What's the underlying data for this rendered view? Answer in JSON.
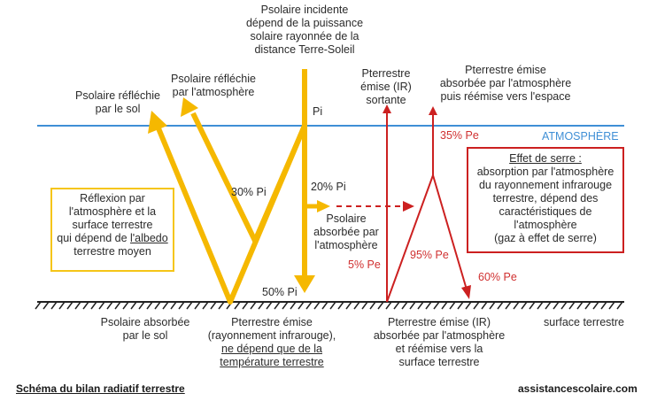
{
  "colors": {
    "solar": "#f5b800",
    "terrestrial": "#cc2020",
    "atmosphere": "#3f8fd6",
    "ground": "#222222",
    "text": "#2b2b2b"
  },
  "labels": {
    "incident": [
      "Psolaire incidente",
      "dépend de la puissance",
      "solaire rayonnée de la",
      "distance Terre-Soleil"
    ],
    "reflected_ground": [
      "Psolaire réfléchie",
      "par le sol"
    ],
    "reflected_atmos": [
      "Psolaire réfléchie",
      "par l'atmosphère"
    ],
    "pi": "Pi",
    "pct30": "30% Pi",
    "pct20": "20% Pi",
    "pct50": "50% Pi",
    "absorbed_atmos": [
      "Psolaire",
      "absorbée par",
      "l'atmosphère"
    ],
    "pterrestre_out": [
      "Pterrestre",
      "émise (IR)",
      "sortante"
    ],
    "pterrestre_reemit": [
      "Pterrestre émise",
      "absorbée par l'atmosphère",
      "puis réémise vers l'espace"
    ],
    "pct35": "35% Pe",
    "pct5": "5% Pe",
    "pct95": "95% Pe",
    "pct60": "60% Pe",
    "atmosphere": "ATMOSPHÈRE",
    "ground_absorbed": [
      "Psolaire absorbée",
      "par le sol"
    ],
    "pterrestre_emise": [
      "Pterrestre émise",
      "(rayonnement infrarouge),"
    ],
    "pterrestre_underlined": [
      "ne dépend que de la",
      "température terrestre"
    ],
    "pterrestre_ir_absorbed": [
      "Pterrestre émise (IR)",
      "absorbée par l'atmosphère",
      "et réémise vers la",
      "surface terrestre"
    ],
    "surface": "surface terrestre"
  },
  "albedo_box": {
    "lines": [
      "Réflexion par",
      "l'atmosphère et la",
      "surface terrestre",
      "qui dépend de "
    ],
    "albedo_word": "l'albedo",
    "last_line": "terrestre moyen"
  },
  "serre_box": {
    "title": "Effet de serre :",
    "lines": [
      "absorption par l'atmosphère",
      "du rayonnement infrarouge",
      "terrestre, dépend des",
      "caractéristiques de",
      "l'atmosphère",
      "(gaz à effet de serre)"
    ]
  },
  "footer": {
    "title": "Schéma du bilan radiatif terrestre",
    "site": "assistancescolaire.com"
  }
}
